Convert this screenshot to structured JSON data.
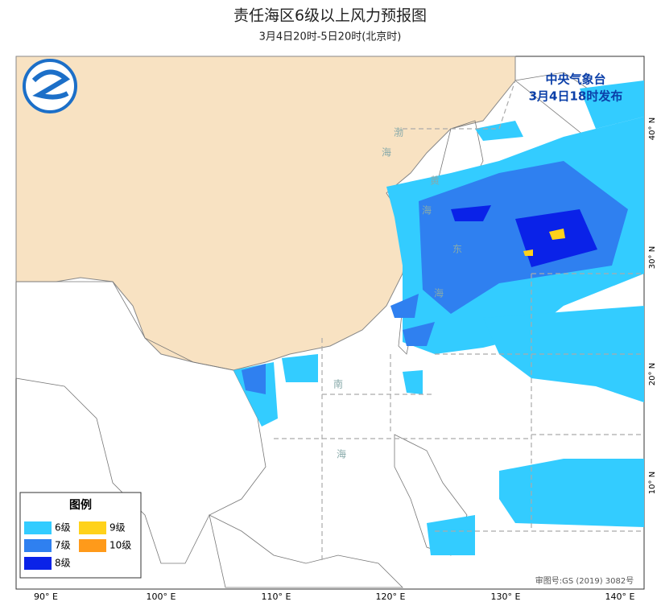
{
  "title": "责任海区6级以上风力预报图",
  "subtitle": "3月4日20时-5日20时(北京时)",
  "issuer": {
    "agency": "中央气象台",
    "issued": "3月4日18时发布"
  },
  "sea_labels": [
    "渤",
    "海",
    "黄",
    "海",
    "东",
    "海",
    "南",
    "海"
  ],
  "legend": {
    "title": "图例",
    "items": [
      {
        "label": "6级",
        "color": "#33ccff"
      },
      {
        "label": "7级",
        "color": "#2f80f0"
      },
      {
        "label": "8级",
        "color": "#0a22e8"
      },
      {
        "label": "9级",
        "color": "#ffd21a"
      },
      {
        "label": "10级",
        "color": "#ff9a1a"
      }
    ]
  },
  "lon_labels": [
    "90° E",
    "100° E",
    "110° E",
    "120° E",
    "130° E",
    "140° E"
  ],
  "lat_labels": [
    "40° N",
    "30° N",
    "20° N",
    "10° N"
  ],
  "approval": "审图号:GS (2019) 3082号"
}
